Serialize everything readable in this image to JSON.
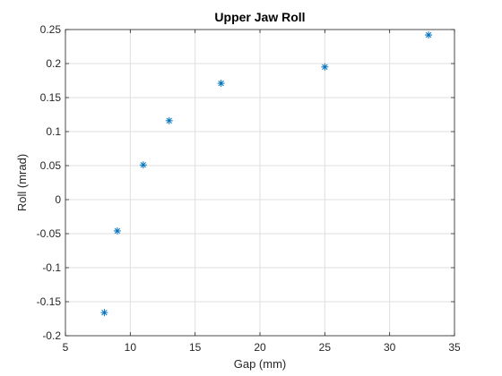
{
  "chart_data": {
    "type": "scatter",
    "title": "Upper Jaw Roll",
    "xlabel": "Gap (mm)",
    "ylabel": "Roll (mrad)",
    "xlim": [
      5,
      35
    ],
    "ylim": [
      -0.2,
      0.25
    ],
    "xticks": [
      5,
      10,
      15,
      20,
      25,
      30,
      35
    ],
    "yticks": [
      -0.2,
      -0.15,
      -0.1,
      -0.05,
      0,
      0.05,
      0.1,
      0.15,
      0.2,
      0.25
    ],
    "xtick_labels": [
      "5",
      "10",
      "15",
      "20",
      "25",
      "30",
      "35"
    ],
    "ytick_labels": [
      "-0.2",
      "-0.15",
      "-0.1",
      "-0.05",
      "0",
      "0.05",
      "0.1",
      "0.15",
      "0.2",
      "0.25"
    ],
    "grid": true,
    "marker": "asterisk",
    "colors": {
      "marker": "#0072bd",
      "grid": "#dfdfdf",
      "axis": "#262626"
    },
    "points": [
      {
        "x": 8,
        "y": -0.166
      },
      {
        "x": 9,
        "y": -0.046
      },
      {
        "x": 11,
        "y": 0.051
      },
      {
        "x": 13,
        "y": 0.116
      },
      {
        "x": 17,
        "y": 0.171
      },
      {
        "x": 25,
        "y": 0.195
      },
      {
        "x": 33,
        "y": 0.242
      }
    ]
  }
}
